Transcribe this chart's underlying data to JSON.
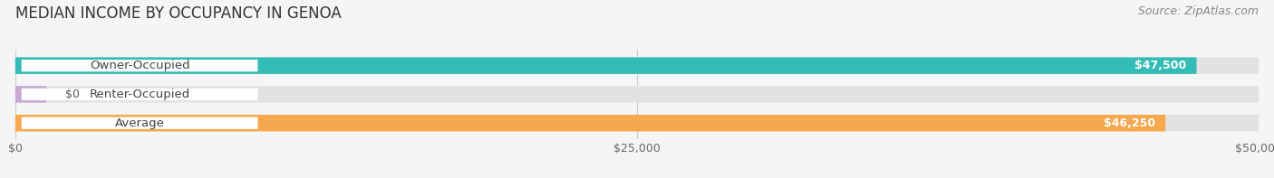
{
  "title": "MEDIAN INCOME BY OCCUPANCY IN GENOA",
  "source": "Source: ZipAtlas.com",
  "categories": [
    "Owner-Occupied",
    "Renter-Occupied",
    "Average"
  ],
  "values": [
    47500,
    0,
    46250
  ],
  "bar_colors": [
    "#33bbb5",
    "#c9a8d4",
    "#f5a84d"
  ],
  "value_labels": [
    "$47,500",
    "$0",
    "$46,250"
  ],
  "xlim": [
    0,
    50000
  ],
  "xticks": [
    0,
    25000,
    50000
  ],
  "xtick_labels": [
    "$0",
    "$25,000",
    "$50,000"
  ],
  "bar_height": 0.58,
  "background_color": "#f5f5f5",
  "bar_bg_color": "#e2e2e2",
  "title_fontsize": 12,
  "source_fontsize": 9,
  "label_fontsize": 9.5,
  "value_fontsize": 9
}
